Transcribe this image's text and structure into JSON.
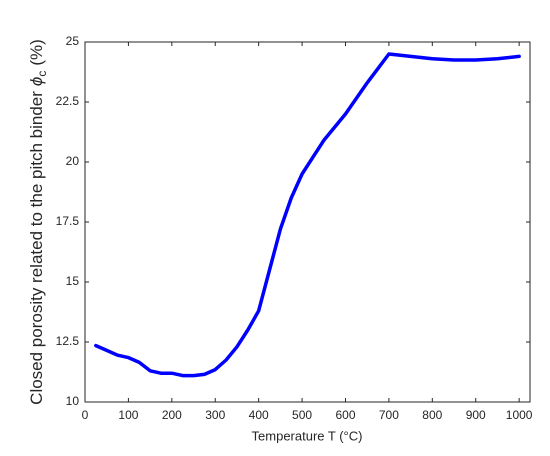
{
  "chart_data": {
    "type": "line",
    "xlabel": "Temperature T (°C)",
    "ylabel": [
      "Closed porosity related to the pitch binder",
      "ϕ",
      "c",
      "(%)"
    ],
    "x": [
      25,
      50,
      75,
      100,
      125,
      150,
      175,
      200,
      225,
      250,
      275,
      300,
      325,
      350,
      375,
      400,
      425,
      450,
      475,
      500,
      525,
      550,
      600,
      650,
      700,
      750,
      800,
      850,
      900,
      950,
      1000
    ],
    "series": [
      {
        "color": "#0000ff",
        "values": [
          12.35,
          12.15,
          11.95,
          11.85,
          11.65,
          11.3,
          11.2,
          11.2,
          11.1,
          11.1,
          11.15,
          11.35,
          11.75,
          12.3,
          13.0,
          13.8,
          15.5,
          17.2,
          18.5,
          19.5,
          20.2,
          20.9,
          22.0,
          23.3,
          24.5,
          24.4,
          24.3,
          24.25,
          24.25,
          24.3,
          24.4
        ]
      }
    ],
    "xlim": [
      0,
      1025
    ],
    "xticks": [
      0,
      100,
      200,
      300,
      400,
      500,
      600,
      700,
      800,
      900,
      1000
    ],
    "ylim": [
      10,
      25
    ],
    "yticks": [
      10,
      12.5,
      15,
      17.5,
      20,
      22.5,
      25
    ],
    "grid": false
  }
}
